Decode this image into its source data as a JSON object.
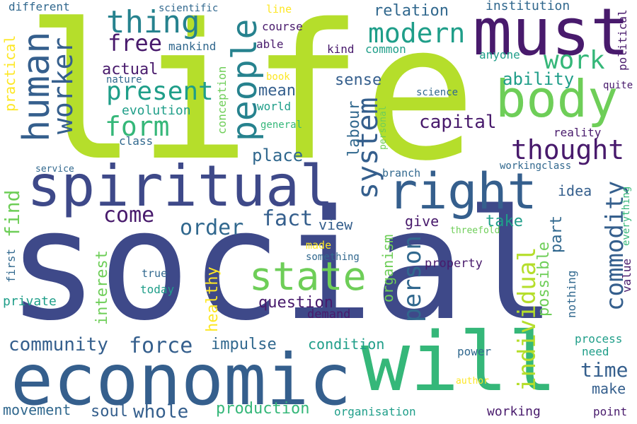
{
  "palette": {
    "dark_purple": "#481a6c",
    "indigo": "#3e4989",
    "slate_blue": "#355f8d",
    "steel_blue": "#31688e",
    "teal": "#26828e",
    "sea_green": "#1f9e89",
    "green": "#35b779",
    "light_green": "#6ece58",
    "lime": "#b5de2b",
    "yellow": "#fde725"
  },
  "words": [
    {
      "text": "social",
      "color": "indigo"
    },
    {
      "text": "life",
      "color": "lime"
    },
    {
      "text": "spiritual",
      "color": "indigo"
    },
    {
      "text": "economic",
      "color": "slate_blue"
    },
    {
      "text": "will",
      "color": "green"
    },
    {
      "text": "must",
      "color": "dark_purple"
    },
    {
      "text": "right",
      "color": "slate_blue"
    },
    {
      "text": "body",
      "color": "light_green"
    },
    {
      "text": "people",
      "color": "teal"
    },
    {
      "text": "human",
      "color": "slate_blue"
    },
    {
      "text": "state",
      "color": "light_green"
    },
    {
      "text": "thing",
      "color": "teal"
    },
    {
      "text": "modern",
      "color": "sea_green"
    },
    {
      "text": "system",
      "color": "slate_blue"
    },
    {
      "text": "thought",
      "color": "dark_purple"
    },
    {
      "text": "worker",
      "color": "slate_blue"
    },
    {
      "text": "present",
      "color": "sea_green"
    },
    {
      "text": "form",
      "color": "green"
    },
    {
      "text": "commodity",
      "color": "slate_blue"
    },
    {
      "text": "individual",
      "color": "lime"
    },
    {
      "text": "person",
      "color": "steel_blue"
    },
    {
      "text": "work",
      "color": "green"
    },
    {
      "text": "free",
      "color": "dark_purple"
    },
    {
      "text": "come",
      "color": "dark_purple"
    },
    {
      "text": "fact",
      "color": "slate_blue"
    },
    {
      "text": "order",
      "color": "steel_blue"
    },
    {
      "text": "force",
      "color": "slate_blue"
    },
    {
      "text": "community",
      "color": "slate_blue"
    },
    {
      "text": "whole",
      "color": "slate_blue"
    },
    {
      "text": "time",
      "color": "slate_blue"
    },
    {
      "text": "capital",
      "color": "dark_purple"
    },
    {
      "text": "ability",
      "color": "sea_green"
    },
    {
      "text": "place",
      "color": "steel_blue"
    },
    {
      "text": "actual",
      "color": "dark_purple"
    },
    {
      "text": "mean",
      "color": "slate_blue"
    },
    {
      "text": "sense",
      "color": "slate_blue"
    },
    {
      "text": "relation",
      "color": "steel_blue"
    },
    {
      "text": "labour",
      "color": "steel_blue"
    },
    {
      "text": "find",
      "color": "light_green"
    },
    {
      "text": "interest",
      "color": "light_green"
    },
    {
      "text": "healthy",
      "color": "yellow"
    },
    {
      "text": "question",
      "color": "dark_purple"
    },
    {
      "text": "condition",
      "color": "sea_green"
    },
    {
      "text": "impulse",
      "color": "steel_blue"
    },
    {
      "text": "production",
      "color": "green"
    },
    {
      "text": "soul",
      "color": "slate_blue"
    },
    {
      "text": "movement",
      "color": "steel_blue"
    },
    {
      "text": "make",
      "color": "slate_blue"
    },
    {
      "text": "possible",
      "color": "light_green"
    },
    {
      "text": "take",
      "color": "sea_green"
    },
    {
      "text": "idea",
      "color": "slate_blue"
    },
    {
      "text": "view",
      "color": "slate_blue"
    },
    {
      "text": "give",
      "color": "dark_purple"
    },
    {
      "text": "part",
      "color": "steel_blue"
    },
    {
      "text": "organism",
      "color": "light_green"
    },
    {
      "text": "evolution",
      "color": "sea_green"
    },
    {
      "text": "practical",
      "color": "yellow"
    },
    {
      "text": "institution",
      "color": "steel_blue"
    },
    {
      "text": "reality",
      "color": "dark_purple"
    },
    {
      "text": "world",
      "color": "sea_green"
    },
    {
      "text": "kind",
      "color": "dark_purple"
    },
    {
      "text": "anyone",
      "color": "sea_green"
    },
    {
      "text": "mankind",
      "color": "steel_blue"
    },
    {
      "text": "common",
      "color": "sea_green"
    },
    {
      "text": "course",
      "color": "dark_purple"
    },
    {
      "text": "able",
      "color": "dark_purple"
    },
    {
      "text": "different",
      "color": "steel_blue"
    },
    {
      "text": "scientific",
      "color": "steel_blue"
    },
    {
      "text": "line",
      "color": "yellow"
    },
    {
      "text": "political",
      "color": "dark_purple"
    },
    {
      "text": "class",
      "color": "steel_blue"
    },
    {
      "text": "conception",
      "color": "light_green"
    },
    {
      "text": "general",
      "color": "green"
    },
    {
      "text": "book",
      "color": "yellow"
    },
    {
      "text": "nature",
      "color": "steel_blue"
    },
    {
      "text": "personal",
      "color": "light_green"
    },
    {
      "text": "science",
      "color": "steel_blue"
    },
    {
      "text": "quite",
      "color": "dark_purple"
    },
    {
      "text": "service",
      "color": "steel_blue"
    },
    {
      "text": "branch",
      "color": "steel_blue"
    },
    {
      "text": "workingclass",
      "color": "steel_blue"
    },
    {
      "text": "everything",
      "color": "green"
    },
    {
      "text": "threefold",
      "color": "light_green"
    },
    {
      "text": "value",
      "color": "dark_purple"
    },
    {
      "text": "made",
      "color": "yellow"
    },
    {
      "text": "something",
      "color": "steel_blue"
    },
    {
      "text": "property",
      "color": "dark_purple"
    },
    {
      "text": "first",
      "color": "steel_blue"
    },
    {
      "text": "true",
      "color": "steel_blue"
    },
    {
      "text": "today",
      "color": "sea_green"
    },
    {
      "text": "private",
      "color": "sea_green"
    },
    {
      "text": "demand",
      "color": "dark_purple"
    },
    {
      "text": "nothing",
      "color": "steel_blue"
    },
    {
      "text": "process",
      "color": "sea_green"
    },
    {
      "text": "need",
      "color": "sea_green"
    },
    {
      "text": "power",
      "color": "steel_blue"
    },
    {
      "text": "author",
      "color": "yellow"
    },
    {
      "text": "organisation",
      "color": "sea_green"
    },
    {
      "text": "working",
      "color": "dark_purple"
    },
    {
      "text": "point",
      "color": "dark_purple"
    }
  ]
}
